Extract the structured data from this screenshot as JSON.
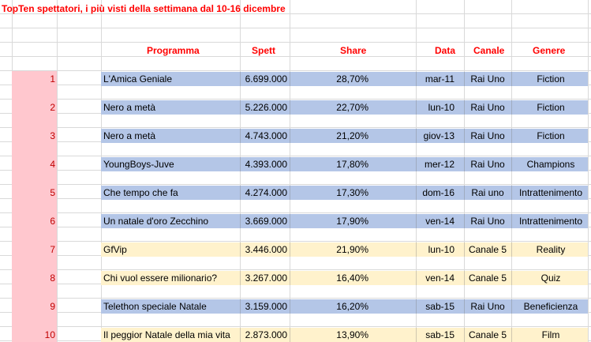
{
  "title": "TopTen spettatori, i più visti della settimana dal 10-16 dicembre",
  "headers": {
    "programma": "Programma",
    "spett": "Spett",
    "share": "Share",
    "data": "Data",
    "canale": "Canale",
    "genere": "Genere"
  },
  "colors": {
    "header_text": "#ff0000",
    "rank_bg": "#ffc7ce",
    "rank_text": "#c00000",
    "rai_band": "#b4c6e7",
    "mediaset_band": "#fff2cc"
  },
  "rows": [
    {
      "rank": "1",
      "programma": "L'Amica Geniale",
      "spett": "6.699.000",
      "share": "28,70%",
      "data": "mar-11",
      "canale": "Rai Uno",
      "genere": "Fiction",
      "band": "blue"
    },
    {
      "rank": "2",
      "programma": "Nero a metà",
      "spett": "5.226.000",
      "share": "22,70%",
      "data": "lun-10",
      "canale": "Rai Uno",
      "genere": "Fiction",
      "band": "blue"
    },
    {
      "rank": "3",
      "programma": "Nero a metà",
      "spett": "4.743.000",
      "share": "21,20%",
      "data": "giov-13",
      "canale": "Rai Uno",
      "genere": "Fiction",
      "band": "blue"
    },
    {
      "rank": "4",
      "programma": "YoungBoys-Juve",
      "spett": "4.393.000",
      "share": "17,80%",
      "data": "mer-12",
      "canale": "Rai Uno",
      "genere": "Champions",
      "band": "blue"
    },
    {
      "rank": "5",
      "programma": "Che tempo che fa",
      "spett": "4.274.000",
      "share": "17,30%",
      "data": "dom-16",
      "canale": "Rai uno",
      "genere": "Intrattenimento",
      "band": "blue"
    },
    {
      "rank": "6",
      "programma": "Un natale d'oro Zecchino",
      "spett": "3.669.000",
      "share": "17,90%",
      "data": "ven-14",
      "canale": "Rai Uno",
      "genere": "Intrattenimento",
      "band": "blue"
    },
    {
      "rank": "7",
      "programma": "GfVip",
      "spett": "3.446.000",
      "share": "21,90%",
      "data": "lun-10",
      "canale": "Canale 5",
      "genere": "Reality",
      "band": "yellow"
    },
    {
      "rank": "8",
      "programma": "Chi vuol essere milionario?",
      "spett": "3.267.000",
      "share": "16,40%",
      "data": "ven-14",
      "canale": "Canale 5",
      "genere": "Quiz",
      "band": "yellow"
    },
    {
      "rank": "9",
      "programma": "Telethon speciale Natale",
      "spett": "3.159.000",
      "share": "16,20%",
      "data": "sab-15",
      "canale": "Rai Uno",
      "genere": "Beneficienza",
      "band": "blue"
    },
    {
      "rank": "10",
      "programma": "Il peggior Natale della mia vita",
      "spett": "2.873.000",
      "share": "13,90%",
      "data": "sab-15",
      "canale": "Canale 5",
      "genere": "Film",
      "band": "yellow"
    }
  ]
}
